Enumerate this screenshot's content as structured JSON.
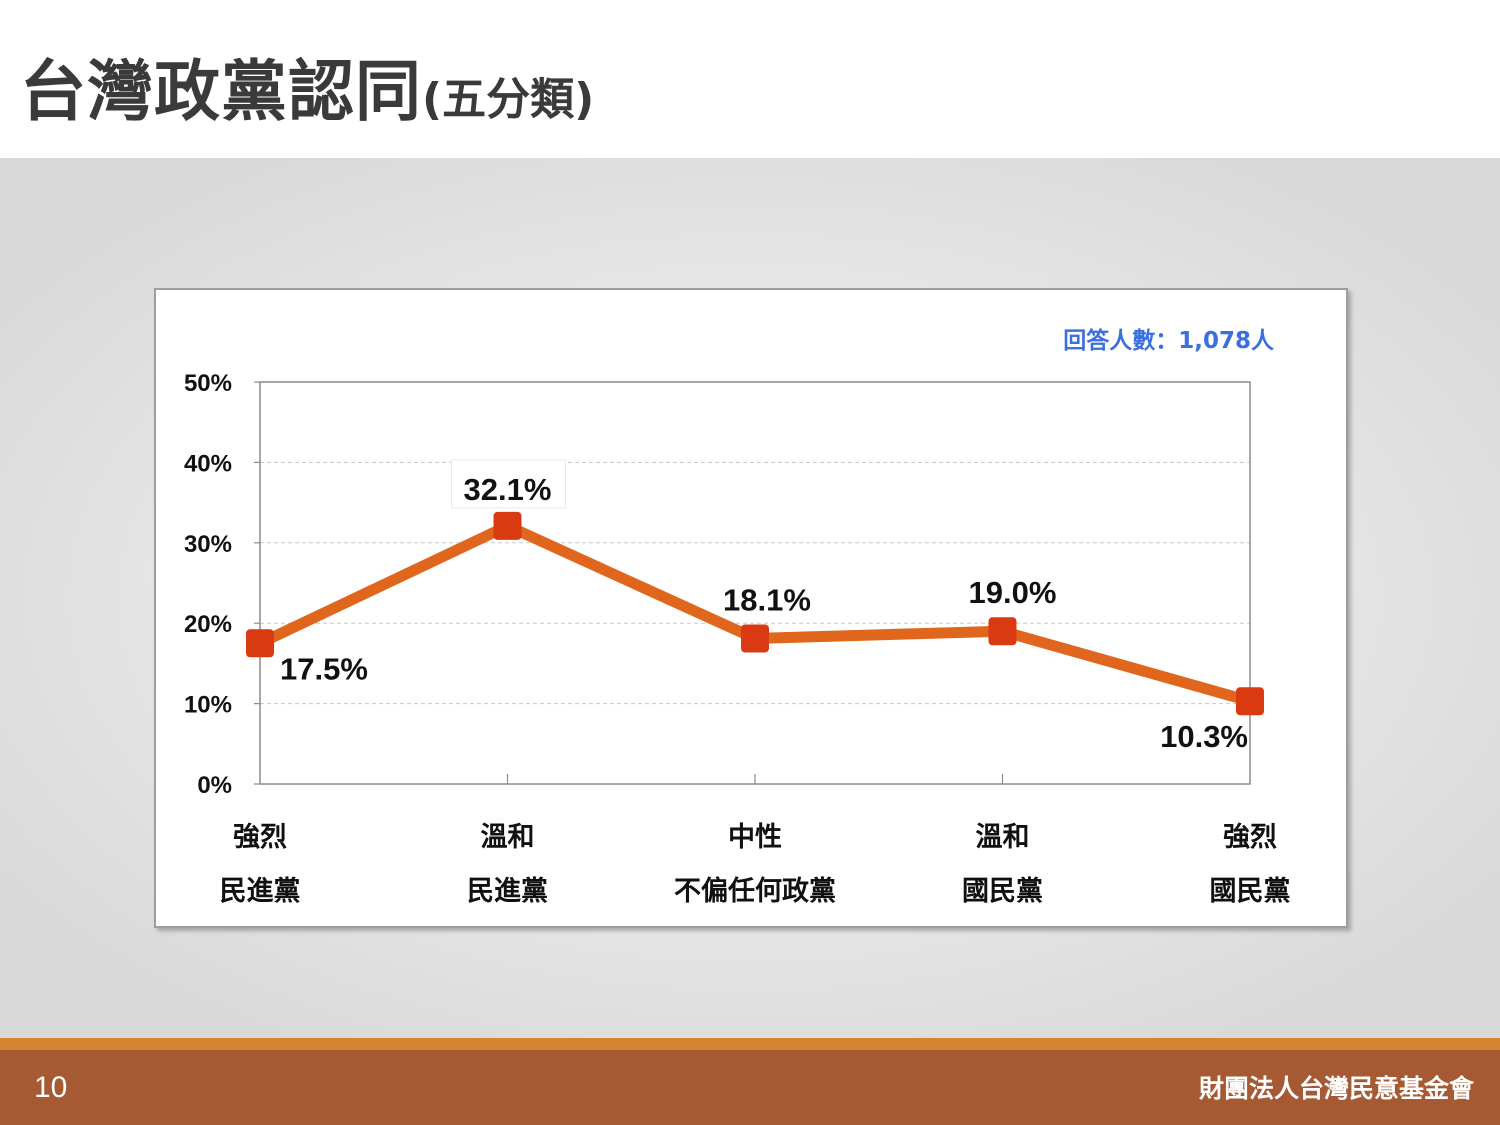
{
  "slide": {
    "title": "台灣政黨認同",
    "title_suffix": "(五分類)",
    "page_number": "10",
    "organization": "財團法人台灣民意基金會"
  },
  "colors": {
    "line": "#e0661e",
    "marker": "#d93a12",
    "note": "#3b6fe0",
    "footer": "#a65a33",
    "footer_accent": "#d4852f"
  },
  "chart_data": {
    "type": "line",
    "note": "回答人數：1,078人",
    "categories": [
      [
        "強烈",
        "民進黨"
      ],
      [
        "溫和",
        "民進黨"
      ],
      [
        "中性",
        "不偏任何政黨"
      ],
      [
        "溫和",
        "國民黨"
      ],
      [
        "強烈",
        "國民黨"
      ]
    ],
    "values": [
      17.5,
      32.1,
      18.1,
      19.0,
      10.3
    ],
    "data_labels": [
      "17.5%",
      "32.1%",
      "18.1%",
      "19.0%",
      "10.3%"
    ],
    "y_ticks": [
      "0%",
      "10%",
      "20%",
      "30%",
      "40%",
      "50%"
    ],
    "ylim": [
      0,
      50
    ],
    "grid": true
  }
}
